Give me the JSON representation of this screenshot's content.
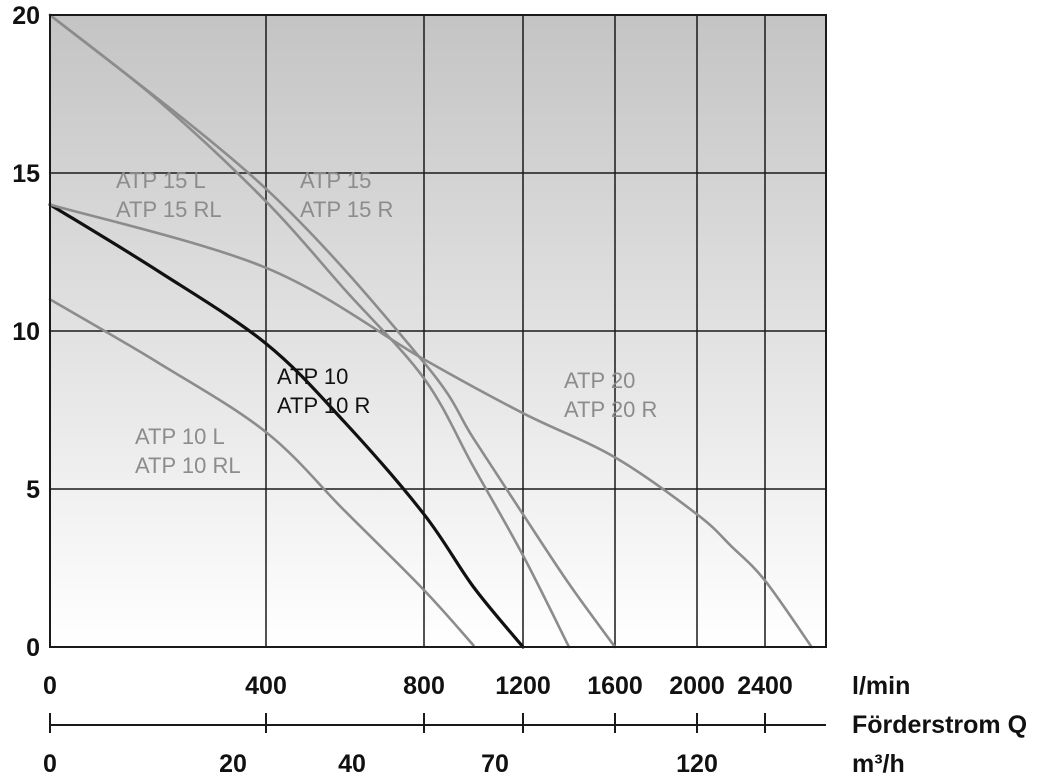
{
  "chart_data": {
    "type": "line",
    "title": "",
    "grid": true,
    "y_axis": {
      "range": [
        0,
        20
      ],
      "ticks": [
        {
          "value": 0,
          "label": "0"
        },
        {
          "value": 5,
          "label": "5"
        },
        {
          "value": 10,
          "label": "10"
        },
        {
          "value": 15,
          "label": "15"
        },
        {
          "value": 20,
          "label": "20"
        }
      ]
    },
    "x_axis": {
      "unit_label": "l/min",
      "ticks": [
        {
          "value": 0,
          "label": "0"
        },
        {
          "value": 400,
          "label": "400"
        },
        {
          "value": 800,
          "label": "800"
        },
        {
          "value": 1200,
          "label": "1200"
        },
        {
          "value": 1600,
          "label": "1600"
        },
        {
          "value": 2000,
          "label": "2000"
        },
        {
          "value": 2400,
          "label": "2400"
        }
      ]
    },
    "secondary_axis": {
      "title": "Förderstrom Q",
      "unit_label": "m³/h",
      "tick_marks": [
        0,
        400,
        800,
        1200,
        1600,
        2000,
        2400
      ],
      "ticks": [
        {
          "value": 0,
          "label": "0"
        },
        {
          "value": 20,
          "label": "20"
        },
        {
          "value": 40,
          "label": "40"
        },
        {
          "value": 70,
          "label": "70"
        },
        {
          "value": 120,
          "label": "120"
        }
      ]
    },
    "series": [
      {
        "labels": [
          "ATP 10",
          "ATP 10 R"
        ],
        "color": "#111111",
        "x": [
          0,
          200,
          400,
          600,
          800,
          1000,
          1200
        ],
        "y": [
          14,
          11.9,
          9.6,
          7.1,
          4.2,
          1.9,
          0
        ]
      },
      {
        "labels": [
          "ATP 10 L",
          "ATP 10 RL"
        ],
        "color": "#8c8c8c",
        "x": [
          0,
          200,
          400,
          600,
          800,
          1000
        ],
        "y": [
          11,
          9,
          6.8,
          4.3,
          1.8,
          0.05
        ]
      },
      {
        "labels": [
          "ATP 15 L",
          "ATP 15 RL"
        ],
        "color": "#8c8c8c",
        "x": [
          0,
          200,
          400,
          600,
          800,
          1000,
          1200,
          1400
        ],
        "y": [
          20,
          17.3,
          14.1,
          11.3,
          8.5,
          5.7,
          2.9,
          0
        ]
      },
      {
        "labels": [
          "ATP 15",
          "ATP 15 R"
        ],
        "color": "#8c8c8c",
        "x": [
          0,
          400,
          800,
          1000,
          1200,
          1400,
          1600
        ],
        "y": [
          20,
          14.5,
          9,
          6.6,
          4.2,
          2,
          0
        ]
      },
      {
        "labels": [
          "ATP 20",
          "ATP 20 R"
        ],
        "color": "#8c8c8c",
        "x": [
          0,
          400,
          800,
          1200,
          1600,
          2000,
          2200,
          2400,
          2530
        ],
        "y": [
          14,
          12,
          9.1,
          7.4,
          6,
          4.2,
          3.2,
          2.1,
          0
        ]
      }
    ]
  },
  "curve_labels": {
    "atp10_line1": "ATP 10",
    "atp10_line2": "ATP 10 R",
    "atp10l_line1": "ATP 10 L",
    "atp10l_line2": "ATP 10 RL",
    "atp15l_line1": "ATP 15 L",
    "atp15l_line2": "ATP 15 RL",
    "atp15_line1": "ATP 15",
    "atp15_line2": "ATP 15 R",
    "atp20_line1": "ATP 20",
    "atp20_line2": "ATP 20 R"
  },
  "colors": {
    "label_gray": "#8c8c8c",
    "label_dark": "#111111",
    "grid": "#1a1a1a"
  }
}
